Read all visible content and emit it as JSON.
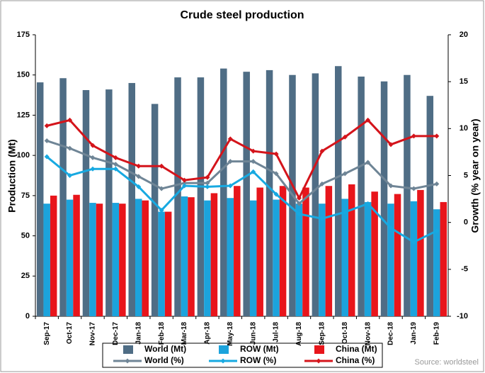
{
  "chart_data": {
    "type": "bar",
    "title": "Crude steel production",
    "y_label": "Production (Mt)",
    "y2_label": "Growth (% year on year)",
    "source": "Source: worldsteel",
    "categories": [
      "Sep-17",
      "Oct-17",
      "Nov-17",
      "Dec-17",
      "Jan-18",
      "Feb-18",
      "Mar-18",
      "Apr-18",
      "May-18",
      "Jun-18",
      "Jul-18",
      "Aug-18",
      "Sep-18",
      "Oct-18",
      "Nov-18",
      "Dec-18",
      "Jan-19",
      "Feb-19"
    ],
    "series": [
      {
        "name": "World (Mt)",
        "type": "bar",
        "color": "#4f6d85",
        "values": [
          145.4,
          148,
          140.6,
          141,
          145,
          132,
          148.5,
          148.5,
          154,
          152,
          153,
          150,
          151,
          155.5,
          149,
          146,
          150,
          137
        ]
      },
      {
        "name": "ROW (Mt)",
        "type": "bar",
        "color": "#1ca3dc",
        "values": [
          70,
          72.5,
          70.5,
          70.5,
          73,
          65,
          74.5,
          72,
          73.5,
          72,
          72.5,
          70,
          70,
          73,
          71,
          70,
          71.5,
          66.5
        ]
      },
      {
        "name": "China (Mt)",
        "type": "bar",
        "color": "#e8151b",
        "values": [
          75,
          75.5,
          70,
          70,
          72,
          65,
          74,
          76.5,
          81,
          80,
          81,
          80,
          81,
          82,
          77.5,
          76,
          78.5,
          71
        ]
      },
      {
        "name": "World (%)",
        "type": "line",
        "axis": "y2",
        "color": "#6f8596",
        "values": [
          8.7,
          7.9,
          6.9,
          6.2,
          4.9,
          3.6,
          4.2,
          4.2,
          6.5,
          6.5,
          5.2,
          2.0,
          4.1,
          5.2,
          6.4,
          3.9,
          3.6,
          4.1
        ]
      },
      {
        "name": "ROW (%)",
        "type": "line",
        "axis": "y2",
        "color": "#17a9e1",
        "values": [
          7.0,
          5.0,
          5.7,
          5.7,
          3.8,
          1.3,
          3.9,
          3.8,
          3.9,
          5.4,
          3.0,
          0.9,
          0.4,
          1.1,
          2.0,
          -0.6,
          -2.1,
          -0.9
        ]
      },
      {
        "name": "China (%)",
        "type": "line",
        "axis": "y2",
        "color": "#d4141b",
        "values": [
          10.3,
          10.9,
          8.2,
          6.9,
          6.0,
          6.0,
          4.5,
          4.8,
          8.9,
          7.6,
          7.3,
          2.6,
          7.6,
          9.1,
          10.9,
          8.3,
          9.2,
          9.2
        ]
      }
    ],
    "ylim": [
      0,
      175
    ],
    "yticks": [
      0,
      25,
      50,
      75,
      100,
      125,
      150,
      175
    ],
    "y2lim": [
      -10,
      20
    ],
    "y2ticks": [
      -10,
      -5,
      0,
      5,
      10,
      15,
      20
    ],
    "legend": "bottom"
  }
}
